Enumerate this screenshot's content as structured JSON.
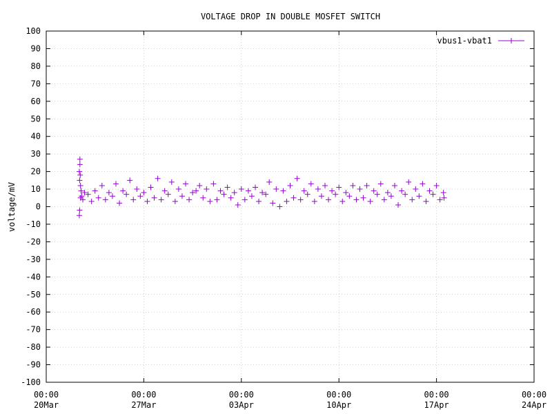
{
  "chart_data": {
    "type": "scatter",
    "title": "VOLTAGE DROP IN DOUBLE MOSFET SWITCH",
    "y_label": "voltage/mV",
    "series": [
      {
        "name": "vbus1-vbat1",
        "color": "#9400d3",
        "x": [
          "09:00 22Mar",
          "09:00 22Mar",
          "09:30 22Mar",
          "09:30 22Mar",
          "10:00 22Mar",
          "10:00 22Mar",
          "10:30 22Mar",
          "11:00 22Mar",
          "11:00 22Mar",
          "12:00 22Mar",
          "13:00 22Mar",
          "15:00 22Mar",
          "18:00 22Mar",
          "00:00 23Mar",
          "06:00 23Mar",
          "12:00 23Mar",
          "18:00 23Mar",
          "00:00 24Mar",
          "06:00 24Mar",
          "12:00 24Mar",
          "18:00 24Mar",
          "00:00 25Mar",
          "06:00 25Mar",
          "12:00 25Mar",
          "18:00 25Mar",
          "00:00 26Mar",
          "06:00 26Mar",
          "12:00 26Mar",
          "18:00 26Mar",
          "00:00 27Mar",
          "06:00 27Mar",
          "12:00 27Mar",
          "18:00 27Mar",
          "00:00 28Mar",
          "06:00 28Mar",
          "12:00 28Mar",
          "18:00 28Mar",
          "00:00 29Mar",
          "06:00 29Mar",
          "12:00 29Mar",
          "18:00 29Mar",
          "00:00 30Mar",
          "06:00 30Mar",
          "12:00 30Mar",
          "18:00 30Mar",
          "00:00 31Mar",
          "06:00 31Mar",
          "12:00 31Mar",
          "18:00 31Mar",
          "00:00 01Apr",
          "06:00 01Apr",
          "12:00 01Apr",
          "18:00 01Apr",
          "00:00 02Apr",
          "06:00 02Apr",
          "12:00 02Apr",
          "18:00 02Apr",
          "00:00 03Apr",
          "06:00 03Apr",
          "12:00 03Apr",
          "18:00 03Apr",
          "00:00 04Apr",
          "06:00 04Apr",
          "12:00 04Apr",
          "18:00 04Apr",
          "00:00 05Apr",
          "06:00 05Apr",
          "12:00 05Apr",
          "18:00 05Apr",
          "00:00 06Apr",
          "06:00 06Apr",
          "12:00 06Apr",
          "18:00 06Apr",
          "00:00 07Apr",
          "06:00 07Apr",
          "12:00 07Apr",
          "18:00 07Apr",
          "00:00 08Apr",
          "06:00 08Apr",
          "12:00 08Apr",
          "18:00 08Apr",
          "00:00 09Apr",
          "06:00 09Apr",
          "12:00 09Apr",
          "18:00 09Apr",
          "00:00 10Apr",
          "06:00 10Apr",
          "12:00 10Apr",
          "18:00 10Apr",
          "00:00 11Apr",
          "06:00 11Apr",
          "12:00 11Apr",
          "18:00 11Apr",
          "00:00 12Apr",
          "06:00 12Apr",
          "12:00 12Apr",
          "18:00 12Apr",
          "00:00 13Apr",
          "06:00 13Apr",
          "12:00 13Apr",
          "18:00 13Apr",
          "00:00 14Apr",
          "06:00 14Apr",
          "12:00 14Apr",
          "18:00 14Apr",
          "00:00 15Apr",
          "06:00 15Apr",
          "12:00 15Apr",
          "18:00 15Apr",
          "00:00 16Apr",
          "06:00 16Apr",
          "12:00 16Apr",
          "18:00 16Apr",
          "00:00 17Apr",
          "06:00 17Apr",
          "12:00 17Apr",
          "13:00 17Apr"
        ],
        "values": [
          20,
          -5,
          15,
          -2,
          27,
          24,
          18,
          12,
          5,
          9,
          6,
          4,
          8,
          7,
          3,
          9,
          5,
          12,
          4,
          8,
          6,
          13,
          2,
          9,
          7,
          15,
          4,
          10,
          6,
          8,
          3,
          11,
          5,
          16,
          4,
          9,
          7,
          14,
          3,
          10,
          6,
          13,
          4,
          8,
          9,
          12,
          5,
          10,
          3,
          13,
          4,
          9,
          7,
          11,
          5,
          8,
          1,
          10,
          4,
          9,
          6,
          11,
          3,
          8,
          7,
          14,
          2,
          10,
          0,
          9,
          3,
          12,
          5,
          16,
          4,
          9,
          7,
          13,
          3,
          10,
          6,
          12,
          4,
          9,
          7,
          11,
          3,
          8,
          6,
          12,
          4,
          10,
          5,
          12,
          3,
          9,
          7,
          13,
          4,
          8,
          6,
          12,
          1,
          9,
          7,
          14,
          4,
          10,
          6,
          13,
          3,
          9,
          7,
          12,
          4,
          8,
          5
        ]
      }
    ],
    "xlim": [
      "00:00 20Mar",
      "00:00 24Apr"
    ],
    "xticks": [
      "00:00 20Mar",
      "00:00 27Mar",
      "00:00 03Apr",
      "00:00 10Apr",
      "00:00 17Apr",
      "00:00 24Apr"
    ],
    "ylim": [
      -100,
      100
    ],
    "yticks": [
      -100,
      -90,
      -80,
      -70,
      -60,
      -50,
      -40,
      -30,
      -20,
      -10,
      0,
      10,
      20,
      30,
      40,
      50,
      60,
      70,
      80,
      90,
      100
    ],
    "grid": true,
    "legend": "top-right"
  }
}
